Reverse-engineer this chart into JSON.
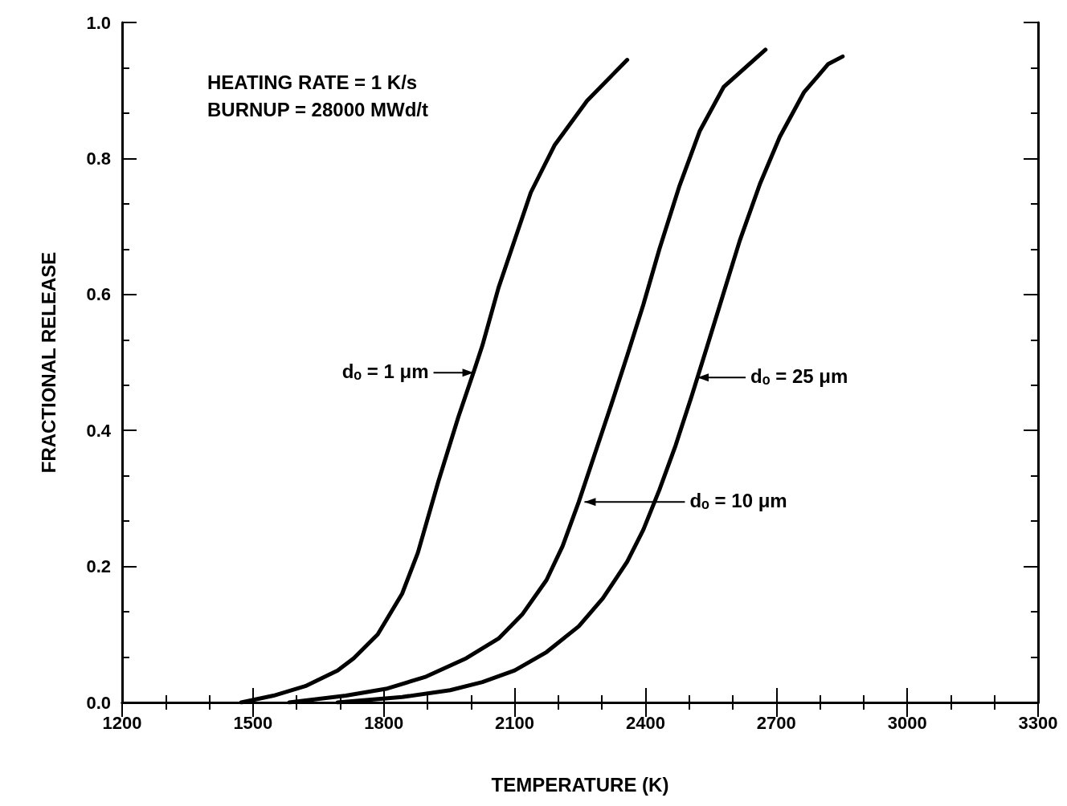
{
  "chart_data": {
    "type": "line",
    "xlabel": "TEMPERATURE (K)",
    "ylabel": "FRACTIONAL RELEASE",
    "xlim": [
      1200,
      3300
    ],
    "xticks": [
      1200,
      1500,
      1800,
      2100,
      2400,
      2700,
      3000,
      3300
    ],
    "ylim": [
      0,
      1
    ],
    "yticks": [
      {
        "value": 0,
        "label": "0.0"
      },
      {
        "value": 0.2,
        "label": "0.2"
      },
      {
        "value": 0.4,
        "label": "0.4"
      },
      {
        "value": 0.6,
        "label": "0.6"
      },
      {
        "value": 0.8,
        "label": "0.8"
      },
      {
        "value": 1,
        "label": "1.0"
      }
    ],
    "grid": false,
    "marker": "none",
    "line_style": "solid",
    "series": [
      {
        "color": "#000000",
        "x": [
          1473,
          1547,
          1620,
          1694,
          1731,
          1786,
          1842,
          1878,
          1925,
          1971,
          2008,
          2026,
          2063,
          2100,
          2137,
          2192,
          2266,
          2358
        ],
        "values": [
          0.0,
          0.01,
          0.024,
          0.047,
          0.065,
          0.1,
          0.16,
          0.22,
          0.325,
          0.42,
          0.49,
          0.525,
          0.61,
          0.68,
          0.75,
          0.82,
          0.885,
          0.945
        ]
      },
      {
        "color": "#000000",
        "x": [
          1583,
          1713,
          1805,
          1897,
          1989,
          2063,
          2118,
          2173,
          2210,
          2247,
          2284,
          2321,
          2358,
          2395,
          2432,
          2478,
          2524,
          2579,
          2675
        ],
        "values": [
          0.0,
          0.01,
          0.02,
          0.038,
          0.065,
          0.094,
          0.13,
          0.18,
          0.23,
          0.295,
          0.366,
          0.437,
          0.51,
          0.585,
          0.667,
          0.76,
          0.84,
          0.905,
          0.96
        ]
      },
      {
        "color": "#000000",
        "x": [
          1694,
          1842,
          1952,
          2026,
          2100,
          2173,
          2247,
          2302,
          2358,
          2395,
          2432,
          2469,
          2505,
          2542,
          2579,
          2616,
          2662,
          2708,
          2763,
          2819,
          2852
        ],
        "values": [
          0.0,
          0.008,
          0.018,
          0.03,
          0.047,
          0.074,
          0.112,
          0.153,
          0.207,
          0.254,
          0.313,
          0.378,
          0.449,
          0.525,
          0.602,
          0.679,
          0.762,
          0.832,
          0.897,
          0.939,
          0.95
        ]
      }
    ],
    "annotations": [
      "HEATING RATE = 1 K/s",
      "BURNUP = 28000 MWd/t",
      {
        "text": "dₒ = 1 μm",
        "x": 2006,
        "y": 0.485
      },
      {
        "text": "dₒ = 25 μm",
        "x": 2519,
        "y": 0.478
      },
      {
        "text": "dₒ = 10 μm",
        "x": 2260,
        "y": 0.295
      }
    ]
  }
}
